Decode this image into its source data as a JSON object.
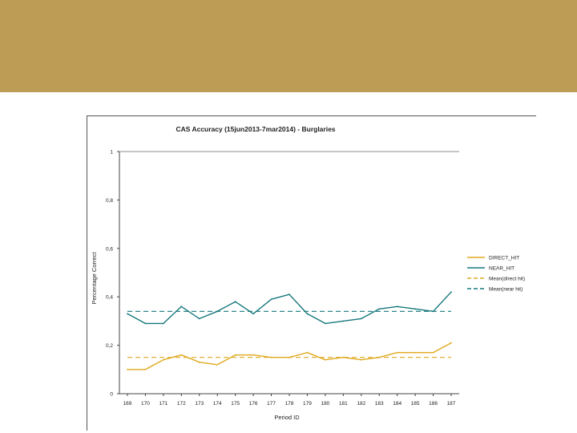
{
  "header": {
    "color": "#bd9d55"
  },
  "chart_data": {
    "type": "line",
    "title": "CAS Accuracy (15jun2013-7mar2014) - Burglaries",
    "xlabel": "Period ID",
    "ylabel": "Percentage Correct",
    "ylim": [
      0,
      1
    ],
    "yticks": [
      0,
      0.2,
      0.4,
      0.6,
      0.8,
      1
    ],
    "ytick_labels": [
      "0",
      "0,2",
      "0,4",
      "0,6",
      "0,8",
      "1"
    ],
    "categories": [
      "169",
      "170",
      "171",
      "172",
      "173",
      "174",
      "175",
      "176",
      "177",
      "178",
      "179",
      "180",
      "181",
      "182",
      "183",
      "184",
      "185",
      "186",
      "187"
    ],
    "grid": false,
    "legend_position": "right",
    "series": [
      {
        "name": "DIRECT_HIT",
        "style": "solid",
        "color": "#e0a91e",
        "values": [
          0.1,
          0.1,
          0.14,
          0.16,
          0.13,
          0.12,
          0.16,
          0.16,
          0.15,
          0.15,
          0.17,
          0.14,
          0.15,
          0.14,
          0.15,
          0.17,
          0.17,
          0.17,
          0.21
        ]
      },
      {
        "name": "NEAR_HIT",
        "style": "solid",
        "color": "#17787d",
        "values": [
          0.33,
          0.29,
          0.29,
          0.36,
          0.31,
          0.34,
          0.38,
          0.33,
          0.39,
          0.41,
          0.33,
          0.29,
          0.3,
          0.31,
          0.35,
          0.36,
          0.35,
          0.34,
          0.42
        ]
      },
      {
        "name": "Mean(direct hit)",
        "style": "dashed",
        "color": "#e0a91e",
        "value": 0.15
      },
      {
        "name": "Mean(near hit)",
        "style": "dashed",
        "color": "#17787d",
        "value": 0.34
      }
    ]
  }
}
